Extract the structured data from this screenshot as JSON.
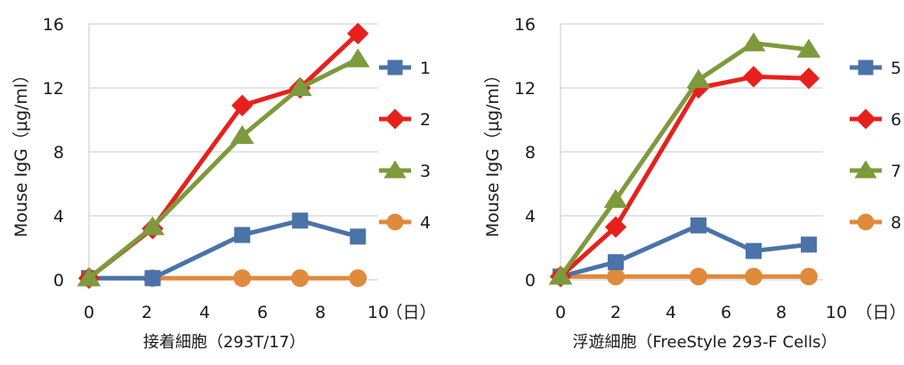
{
  "chart_data": [
    {
      "type": "line",
      "title": "",
      "xlabel": "接着細胞（293T/17）",
      "ylabel": "Mouse IgG（μg/ml）",
      "x_unit": "（日）",
      "xlim": [
        0,
        10
      ],
      "ylim": [
        0,
        16
      ],
      "x_ticks": [
        0,
        2,
        4,
        6,
        8,
        10
      ],
      "y_ticks": [
        0,
        4,
        8,
        12,
        16
      ],
      "grid": "horizontal",
      "legend_position": "right",
      "series": [
        {
          "name": "1",
          "color": "#4a73a8",
          "marker": "square",
          "x": [
            0,
            2.2,
            5.3,
            7.3,
            9.3
          ],
          "values": [
            0.1,
            0.1,
            2.8,
            3.7,
            2.7
          ]
        },
        {
          "name": "2",
          "color": "#e8201c",
          "marker": "diamond",
          "x": [
            0,
            2.2,
            5.3,
            7.3,
            9.3
          ],
          "values": [
            0.1,
            3.2,
            10.9,
            12.0,
            15.4
          ]
        },
        {
          "name": "3",
          "color": "#7d9a3c",
          "marker": "triangle",
          "x": [
            0,
            2.2,
            5.3,
            7.3,
            9.3
          ],
          "values": [
            0.1,
            3.3,
            9.0,
            12.0,
            13.8
          ]
        },
        {
          "name": "4",
          "color": "#e08a3c",
          "marker": "circle",
          "x": [
            0,
            2.2,
            5.3,
            7.3,
            9.3
          ],
          "values": [
            0.1,
            0.1,
            0.1,
            0.1,
            0.1
          ]
        }
      ]
    },
    {
      "type": "line",
      "title": "",
      "xlabel": "浮遊細胞（FreeStyle 293-F Cells）",
      "ylabel": "Mouse IgG（μg/ml）",
      "x_unit": "（日）",
      "xlim": [
        0,
        10
      ],
      "ylim": [
        0,
        16
      ],
      "x_ticks": [
        0,
        2,
        4,
        6,
        8,
        10
      ],
      "y_ticks": [
        0,
        4,
        8,
        12,
        16
      ],
      "grid": "horizontal",
      "legend_position": "right",
      "series": [
        {
          "name": "5",
          "color": "#4a73a8",
          "marker": "square",
          "x": [
            0,
            2,
            5,
            7,
            9
          ],
          "values": [
            0.2,
            1.1,
            3.4,
            1.8,
            2.2
          ]
        },
        {
          "name": "6",
          "color": "#e8201c",
          "marker": "diamond",
          "x": [
            0,
            2,
            5,
            7,
            9
          ],
          "values": [
            0.2,
            3.3,
            12.0,
            12.7,
            12.6
          ]
        },
        {
          "name": "7",
          "color": "#7d9a3c",
          "marker": "triangle",
          "x": [
            0,
            2,
            5,
            7,
            9
          ],
          "values": [
            0.2,
            5.0,
            12.5,
            14.8,
            14.4
          ]
        },
        {
          "name": "8",
          "color": "#e08a3c",
          "marker": "circle",
          "x": [
            0,
            2,
            5,
            7,
            9
          ],
          "values": [
            0.2,
            0.2,
            0.2,
            0.2,
            0.2
          ]
        }
      ]
    }
  ]
}
